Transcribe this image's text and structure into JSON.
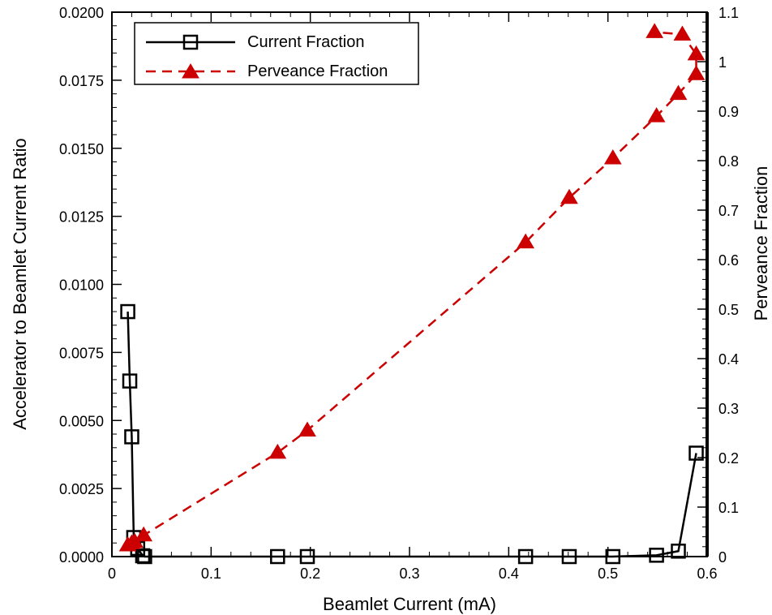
{
  "chart_data": {
    "type": "line",
    "xlabel": "Beamlet Current (mA)",
    "ylabel": "Accelerator to Beamlet Current Ratio",
    "y2label": "Perveance Fraction",
    "xlim": [
      0,
      0.6
    ],
    "ylim": [
      0,
      0.02
    ],
    "y2lim": [
      0,
      1.1
    ],
    "xticks": [
      0,
      0.1,
      0.2,
      0.3,
      0.4,
      0.5,
      0.6
    ],
    "xtick_labels": [
      "0",
      "0.1",
      "0.2",
      "0.3",
      "0.4",
      "0.5",
      "0.6"
    ],
    "yticks": [
      0,
      0.0025,
      0.005,
      0.0075,
      0.01,
      0.0125,
      0.015,
      0.0175,
      0.02
    ],
    "ytick_labels": [
      "0.0000",
      "0.0025",
      "0.0050",
      "0.0075",
      "0.0100",
      "0.0125",
      "0.0150",
      "0.0175",
      "0.0200"
    ],
    "y2ticks": [
      0,
      0.1,
      0.2,
      0.3,
      0.4,
      0.5,
      0.6,
      0.7,
      0.8,
      0.9,
      1,
      1.1
    ],
    "y2tick_labels": [
      "0",
      "0.1",
      "0.2",
      "0.3",
      "0.4",
      "0.5",
      "0.6",
      "0.7",
      "0.8",
      "0.9",
      "1",
      "1.1"
    ],
    "grid": false,
    "legend_position": "top-left",
    "series": [
      {
        "name": "Current Fraction",
        "axis": "left",
        "color": "#000000",
        "line": "solid",
        "marker": "open-square",
        "x": [
          0.016,
          0.018,
          0.02,
          0.022,
          0.026,
          0.031,
          0.033,
          0.167,
          0.197,
          0.417,
          0.461,
          0.505,
          0.549,
          0.571,
          0.589
        ],
        "y": [
          0.009,
          0.00645,
          0.0044,
          0.0007,
          0.0003,
          3e-05,
          0.0,
          0.0,
          0.0,
          0.0,
          0.0,
          0.0,
          5e-05,
          0.0002,
          0.0038
        ]
      },
      {
        "name": "Perveance Fraction",
        "axis": "right",
        "color": "#cc0000",
        "line": "dashed",
        "marker": "filled-triangle",
        "x": [
          0.016,
          0.02,
          0.023,
          0.032,
          0.167,
          0.197,
          0.417,
          0.461,
          0.505,
          0.549,
          0.571,
          0.589,
          0.589,
          0.575,
          0.547
        ],
        "y": [
          0.023,
          0.027,
          0.03,
          0.043,
          0.21,
          0.255,
          0.635,
          0.725,
          0.805,
          0.89,
          0.935,
          0.975,
          1.015,
          1.055,
          1.06
        ]
      }
    ]
  }
}
